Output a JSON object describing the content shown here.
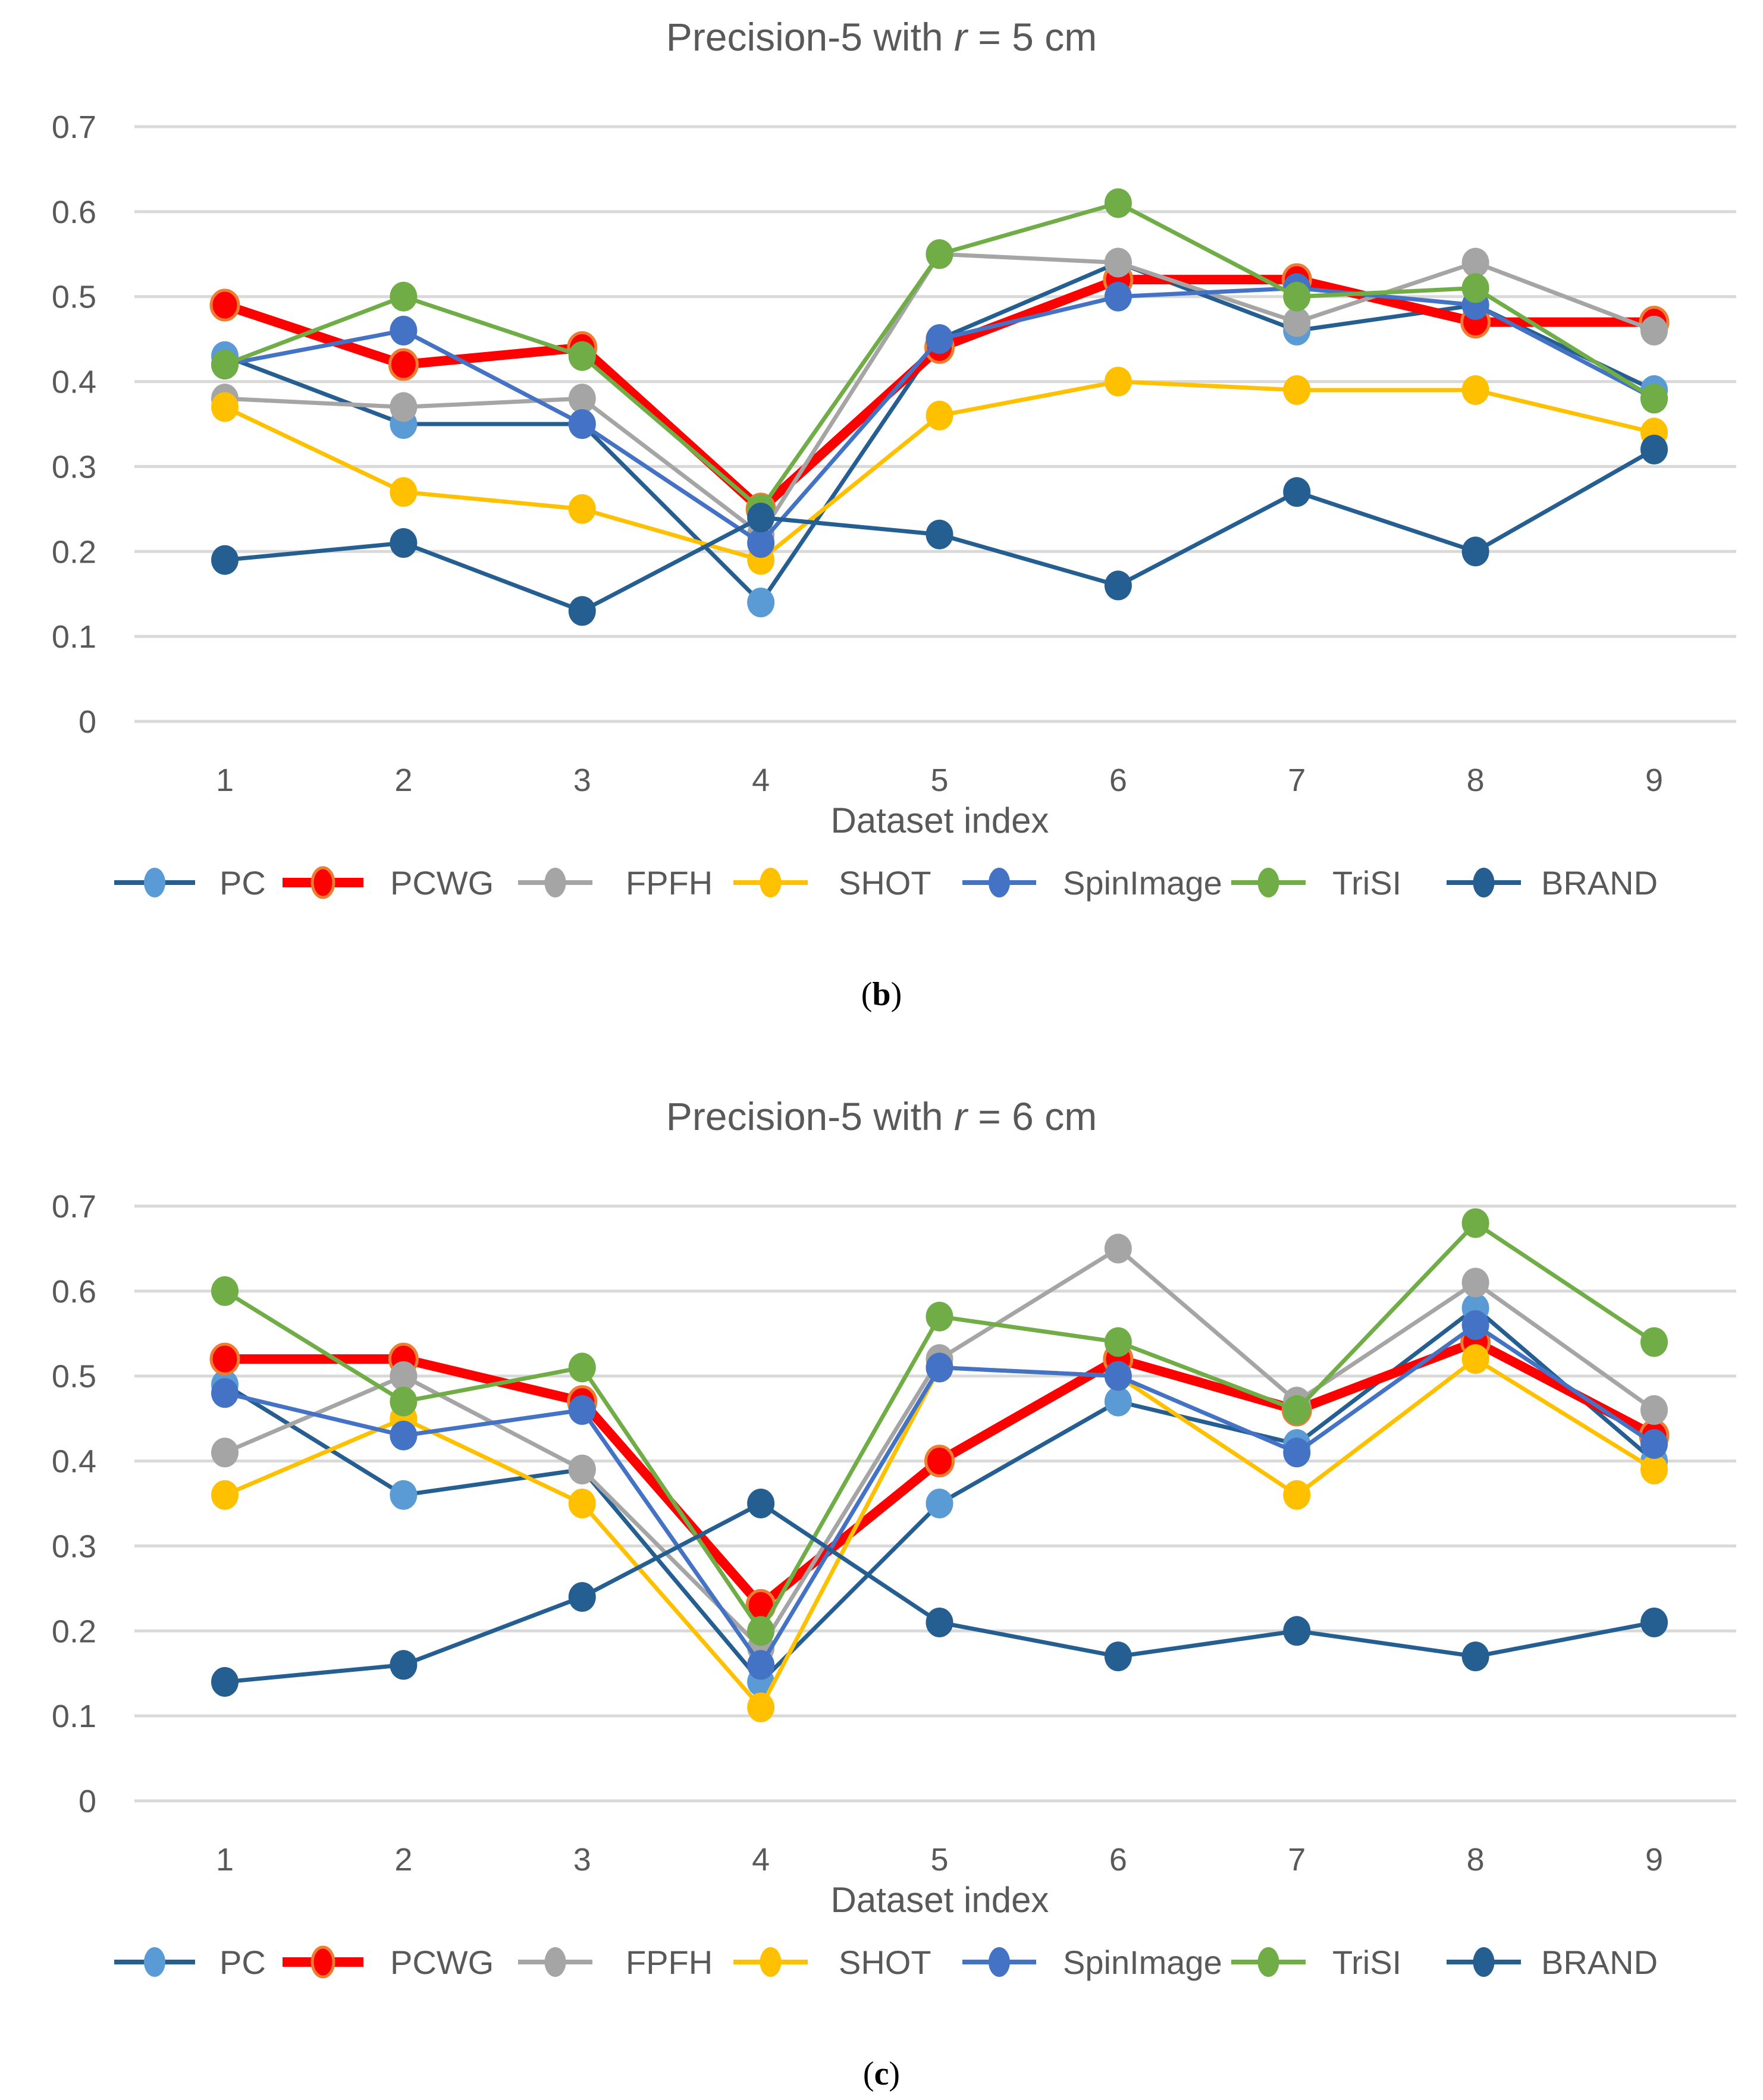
{
  "chart_data": [
    {
      "type": "line",
      "caption": "b",
      "title_prefix": "Precision-5 with ",
      "title_var": "r",
      "title_suffix": " = 5 cm",
      "xlabel": "Dataset index",
      "ylabel": "",
      "x": [
        "1",
        "2",
        "3",
        "4",
        "5",
        "6",
        "7",
        "8",
        "9"
      ],
      "yticks": [
        "0",
        "0.1",
        "0.2",
        "0.3",
        "0.4",
        "0.5",
        "0.6",
        "0.7"
      ],
      "ylim": [
        0,
        0.7
      ],
      "grid": true,
      "legend_position": "bottom",
      "series": [
        {
          "name": "PC",
          "line": "#255E91",
          "marker": "#5B9BD5",
          "values": [
            0.43,
            0.35,
            0.35,
            0.14,
            0.45,
            0.54,
            0.46,
            0.49,
            0.39
          ]
        },
        {
          "name": "PCWG",
          "line": "#FF0000",
          "marker": "#FF0000",
          "markerStroke": "#ED7D31",
          "thick": true,
          "values": [
            0.49,
            0.42,
            0.44,
            0.25,
            0.44,
            0.52,
            0.52,
            0.47,
            0.47
          ]
        },
        {
          "name": "FPFH",
          "line": "#A5A5A5",
          "marker": "#A5A5A5",
          "values": [
            0.38,
            0.37,
            0.38,
            0.22,
            0.55,
            0.54,
            0.47,
            0.54,
            0.46
          ]
        },
        {
          "name": "SHOT",
          "line": "#FFC000",
          "marker": "#FFC000",
          "values": [
            0.37,
            0.27,
            0.25,
            0.19,
            0.36,
            0.4,
            0.39,
            0.39,
            0.34
          ]
        },
        {
          "name": "SpinImage",
          "line": "#4472C4",
          "marker": "#4472C4",
          "values": [
            0.42,
            0.46,
            0.35,
            0.21,
            0.45,
            0.5,
            0.51,
            0.49,
            0.38
          ]
        },
        {
          "name": "TriSI",
          "line": "#70AD47",
          "marker": "#70AD47",
          "values": [
            0.42,
            0.5,
            0.43,
            0.25,
            0.55,
            0.61,
            0.5,
            0.51,
            0.38
          ]
        },
        {
          "name": "BRAND",
          "line": "#255E91",
          "marker": "#255E91",
          "values": [
            0.19,
            0.21,
            0.13,
            0.24,
            0.22,
            0.16,
            0.27,
            0.2,
            0.32
          ]
        }
      ]
    },
    {
      "type": "line",
      "caption": "c",
      "title_prefix": "Precision-5 with ",
      "title_var": "r",
      "title_suffix": " = 6 cm",
      "xlabel": "Dataset index",
      "ylabel": "",
      "x": [
        "1",
        "2",
        "3",
        "4",
        "5",
        "6",
        "7",
        "8",
        "9"
      ],
      "yticks": [
        "0",
        "0.1",
        "0.2",
        "0.3",
        "0.4",
        "0.5",
        "0.6",
        "0.7"
      ],
      "ylim": [
        0,
        0.7
      ],
      "grid": true,
      "legend_position": "bottom",
      "series": [
        {
          "name": "PC",
          "line": "#255E91",
          "marker": "#5B9BD5",
          "values": [
            0.49,
            0.36,
            0.39,
            0.14,
            0.35,
            0.47,
            0.42,
            0.58,
            0.4
          ]
        },
        {
          "name": "PCWG",
          "line": "#FF0000",
          "marker": "#FF0000",
          "markerStroke": "#ED7D31",
          "thick": true,
          "values": [
            0.52,
            0.52,
            0.47,
            0.23,
            0.4,
            0.52,
            0.46,
            0.54,
            0.43
          ]
        },
        {
          "name": "FPFH",
          "line": "#A5A5A5",
          "marker": "#A5A5A5",
          "values": [
            0.41,
            0.5,
            0.39,
            0.18,
            0.52,
            0.65,
            0.47,
            0.61,
            0.46
          ]
        },
        {
          "name": "SHOT",
          "line": "#FFC000",
          "marker": "#FFC000",
          "values": [
            0.36,
            0.45,
            0.35,
            0.11,
            0.51,
            0.5,
            0.36,
            0.52,
            0.39
          ]
        },
        {
          "name": "SpinImage",
          "line": "#4472C4",
          "marker": "#4472C4",
          "values": [
            0.48,
            0.43,
            0.46,
            0.16,
            0.51,
            0.5,
            0.41,
            0.56,
            0.42
          ]
        },
        {
          "name": "TriSI",
          "line": "#70AD47",
          "marker": "#70AD47",
          "values": [
            0.6,
            0.47,
            0.51,
            0.2,
            0.57,
            0.54,
            0.46,
            0.68,
            0.54
          ]
        },
        {
          "name": "BRAND",
          "line": "#255E91",
          "marker": "#255E91",
          "values": [
            0.14,
            0.16,
            0.24,
            0.35,
            0.21,
            0.17,
            0.2,
            0.17,
            0.21
          ]
        }
      ]
    }
  ]
}
